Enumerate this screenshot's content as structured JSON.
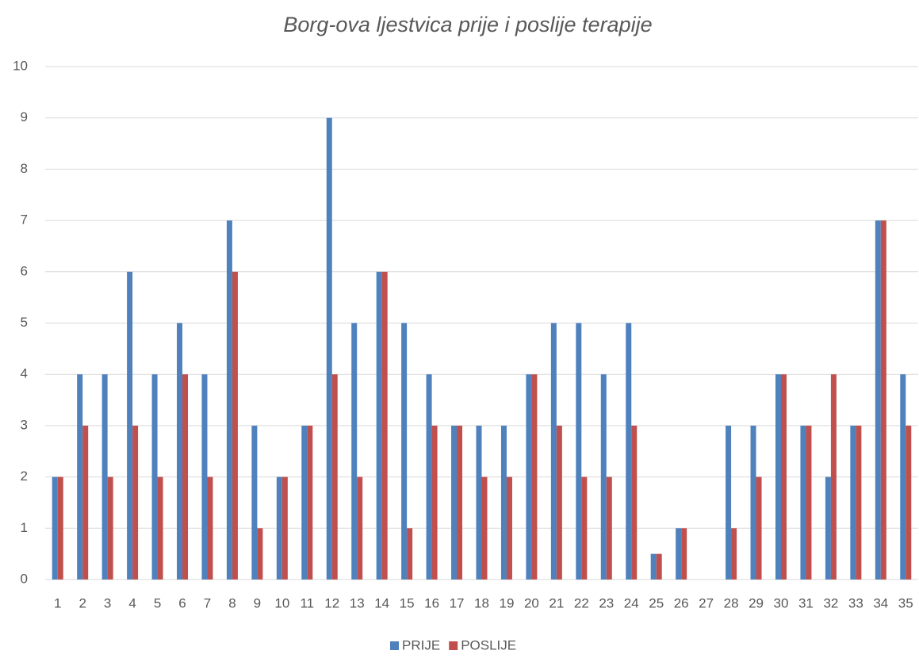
{
  "chart_data": {
    "type": "bar",
    "title": "Borg-ova ljestvica prije i poslije terapije",
    "categories": [
      "1",
      "2",
      "3",
      "4",
      "5",
      "6",
      "7",
      "8",
      "9",
      "10",
      "11",
      "12",
      "13",
      "14",
      "15",
      "16",
      "17",
      "18",
      "19",
      "20",
      "21",
      "22",
      "23",
      "24",
      "25",
      "26",
      "27",
      "28",
      "29",
      "30",
      "31",
      "32",
      "33",
      "34",
      "35"
    ],
    "series": [
      {
        "name": "PRIJE",
        "color": "#4f81bd",
        "values": [
          2,
          4,
          4,
          6,
          4,
          5,
          4,
          7,
          3,
          2,
          3,
          9,
          5,
          6,
          5,
          4,
          3,
          3,
          3,
          4,
          5,
          5,
          4,
          5,
          0.5,
          1,
          0,
          3,
          3,
          4,
          3,
          2,
          3,
          7,
          4
        ]
      },
      {
        "name": "POSLIJE",
        "color": "#c0504d",
        "values": [
          2,
          3,
          2,
          3,
          2,
          4,
          2,
          6,
          1,
          2,
          3,
          4,
          2,
          6,
          1,
          3,
          3,
          2,
          2,
          4,
          3,
          2,
          2,
          3,
          0.5,
          1,
          0,
          1,
          2,
          4,
          3,
          4,
          3,
          7,
          3
        ]
      }
    ],
    "ylim": [
      0,
      10
    ],
    "yticks": [
      0,
      1,
      2,
      3,
      4,
      5,
      6,
      7,
      8,
      9,
      10
    ],
    "grid": true,
    "legend": "bottom"
  }
}
